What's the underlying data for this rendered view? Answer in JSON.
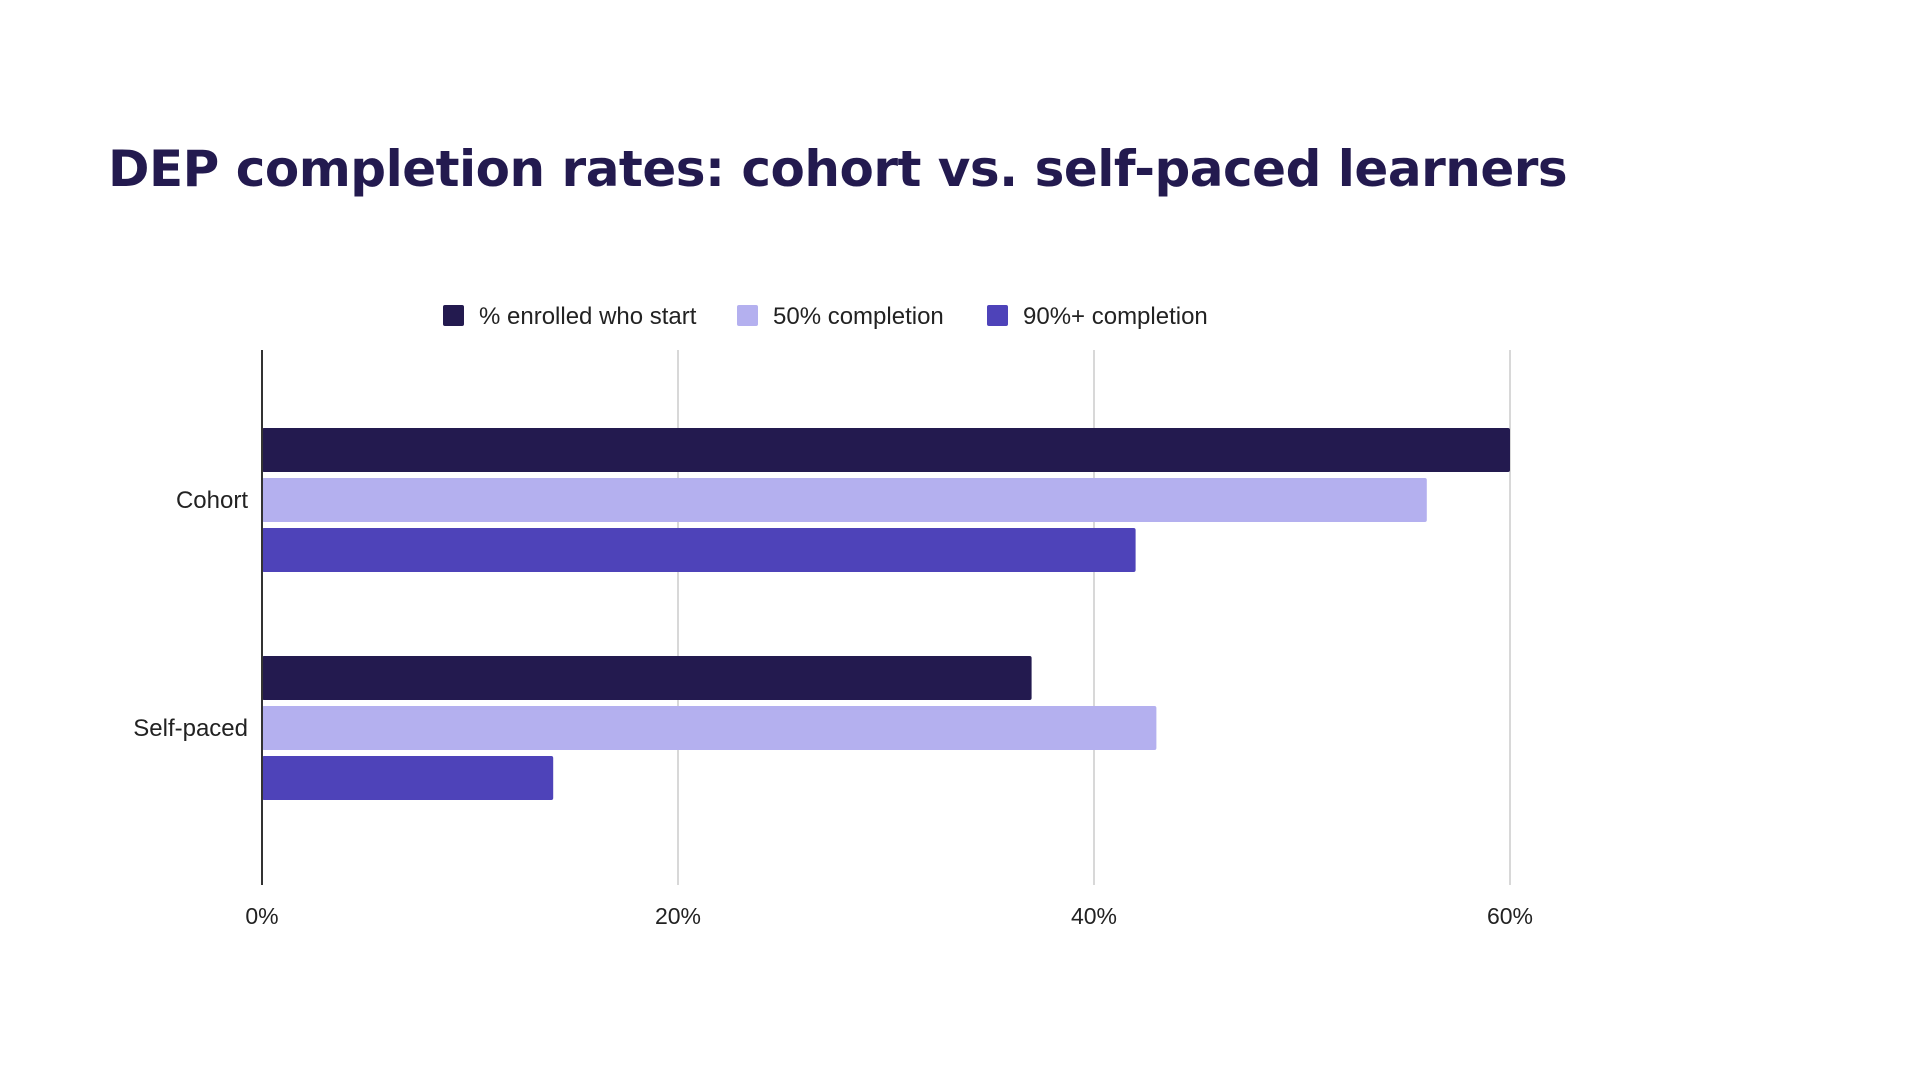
{
  "title": "DEP completion rates: cohort vs. self-paced learners",
  "chart_data": {
    "type": "bar",
    "orientation": "horizontal",
    "title": "DEP completion rates: cohort vs. self-paced learners",
    "categories": [
      "Cohort",
      "Self-paced"
    ],
    "series": [
      {
        "name": "% enrolled who start",
        "color": "#231a4f",
        "values": [
          60,
          37
        ]
      },
      {
        "name": "50% completion",
        "color": "#b4b0ef",
        "values": [
          56,
          43
        ]
      },
      {
        "name": "90%+ completion",
        "color": "#4e43b9",
        "values": [
          42,
          14
        ]
      }
    ],
    "xlim": [
      0,
      60
    ],
    "xticks": [
      0,
      20,
      40,
      60
    ],
    "xtick_labels": [
      "0%",
      "20%",
      "40%",
      "60%"
    ],
    "unit": "%",
    "grid": true,
    "legend_position": "top"
  }
}
